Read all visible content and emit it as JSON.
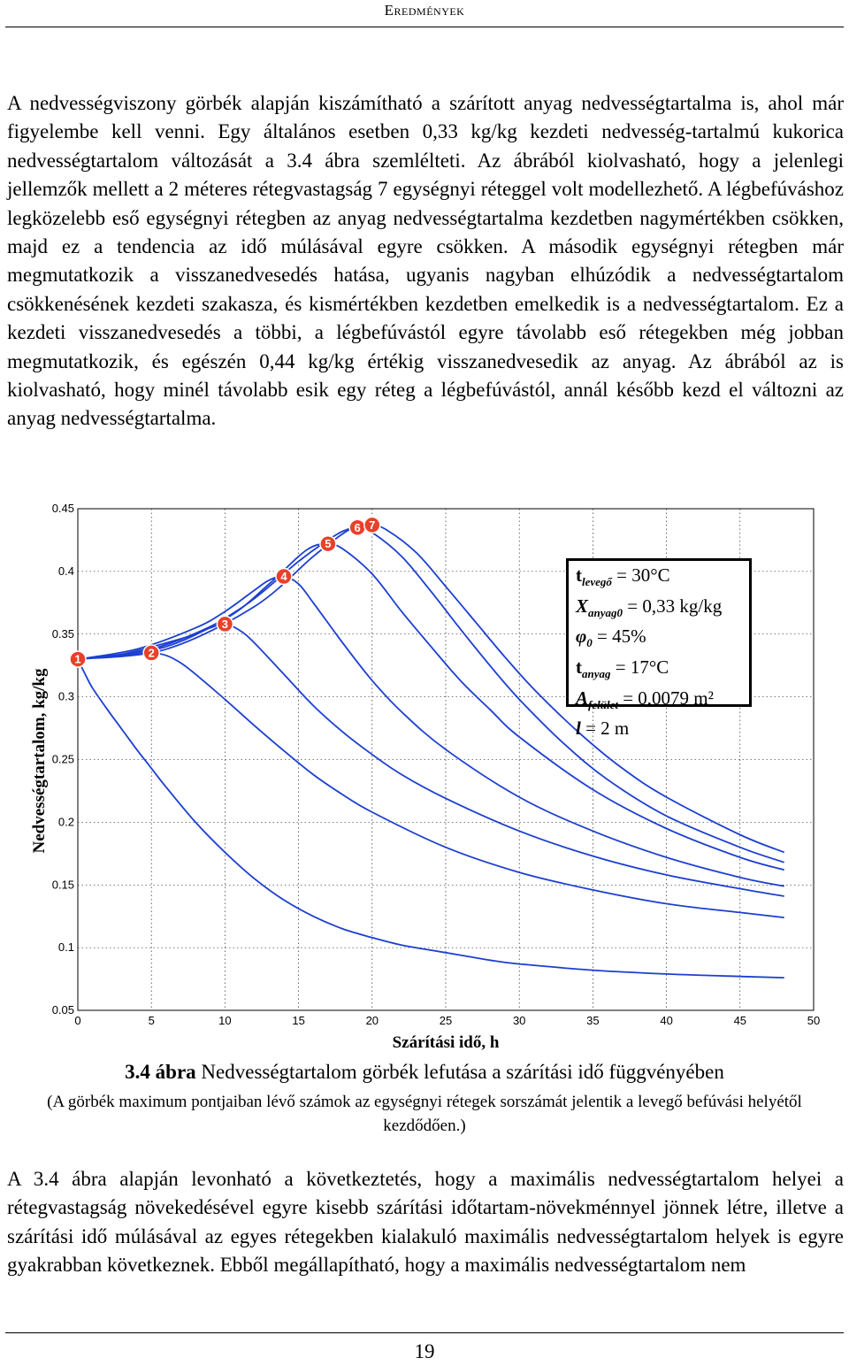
{
  "header": {
    "title": "Eredmények"
  },
  "paragraph1": "A nedvességviszony görbék alapján kiszámítható a szárított anyag nedvességtartalma is, ahol már figyelembe kell venni. Egy általános esetben 0,33 kg/kg kezdeti nedvesség-tartalmú kukorica nedvességtartalom változását a 3.4 ábra szemlélteti. Az ábrából kiolvasható, hogy a jelenlegi jellemzők mellett a 2 méteres rétegvastagság 7 egységnyi réteggel volt modellezhető. A légbefúváshoz legközelebb eső egységnyi rétegben az anyag nedvességtartalma kezdetben nagymértékben csökken, majd ez a tendencia az idő múlásával egyre csökken. A második egységnyi rétegben már megmutatkozik a visszanedvesedés hatása, ugyanis nagyban elhúzódik a nedvességtartalom csökkenésének kezdeti szakasza, és kismértékben kezdetben emelkedik is a nedvességtartalom. Ez a kezdeti visszanedvesedés a többi, a légbefúvástól egyre távolabb eső rétegekben még jobban megmutatkozik, és egészén 0,44 kg/kg értékig visszanedvesedik az anyag. Az ábrából az is kiolvasható, hogy minél távolabb esik egy réteg a légbefúvástól, annál később kezd el változni az anyag nedvességtartalma.",
  "figure": {
    "caption_number": "3.4 ábra",
    "caption_text": "Nedvességtartalom görbék lefutása a szárítási idő függvényében",
    "caption_note": "(A görbék maximum pontjaiban lévő számok az egységnyi rétegek sorszámát jelentik a levegő befúvási helyétől kezdődően.)",
    "params": [
      {
        "sym": "t",
        "sub": "levegő",
        "value": " = 30°C"
      },
      {
        "sym": "X",
        "sub": "anyag0",
        "value": " = 0,33 kg/kg"
      },
      {
        "sym": "φ",
        "sub": "0",
        "value": " = 45%"
      },
      {
        "sym": "t",
        "sub": "anyag",
        "value": " = 17°C"
      },
      {
        "sym": "A",
        "sub": "felület",
        "value": " = 0,0079 m²"
      },
      {
        "sym": "l",
        "sub": "",
        "value": " = 2 m"
      }
    ]
  },
  "chart_data": {
    "type": "line",
    "xlabel": "Szárítási idő, h",
    "ylabel": "Nedvességtartalom, kg/kg",
    "xlim": [
      0,
      50
    ],
    "ylim": [
      0.05,
      0.45
    ],
    "xticks": [
      "0",
      "5",
      "10",
      "15",
      "20",
      "25",
      "30",
      "35",
      "40",
      "45",
      "50"
    ],
    "yticks": [
      "0.05",
      "0.1",
      "0.15",
      "0.2",
      "0.25",
      "0.3",
      "0.35",
      "0.4",
      "0.45"
    ],
    "grid": true,
    "line_color": "#1c3fd0",
    "marker_color": "#e8402a",
    "series": [
      {
        "name": "1",
        "x": [
          0,
          0.5,
          1,
          2,
          3,
          4,
          5,
          6,
          8,
          10,
          12,
          14,
          16,
          18,
          20,
          22,
          24,
          26,
          28,
          30,
          35,
          40,
          45,
          48
        ],
        "y": [
          0.33,
          0.318,
          0.307,
          0.29,
          0.274,
          0.258,
          0.243,
          0.228,
          0.2,
          0.176,
          0.155,
          0.138,
          0.125,
          0.115,
          0.108,
          0.102,
          0.098,
          0.094,
          0.09,
          0.087,
          0.082,
          0.079,
          0.077,
          0.076
        ]
      },
      {
        "name": "2",
        "x": [
          0,
          2,
          4,
          5,
          6,
          7,
          8,
          10,
          12,
          14,
          16,
          18,
          20,
          25,
          30,
          35,
          40,
          45,
          48
        ],
        "y": [
          0.33,
          0.332,
          0.334,
          0.335,
          0.333,
          0.327,
          0.318,
          0.298,
          0.277,
          0.257,
          0.238,
          0.222,
          0.208,
          0.18,
          0.16,
          0.146,
          0.135,
          0.128,
          0.124
        ]
      },
      {
        "name": "3",
        "x": [
          0,
          3,
          6,
          8,
          9,
          10,
          11,
          12,
          14,
          16,
          18,
          20,
          22,
          25,
          30,
          35,
          40,
          45,
          48
        ],
        "y": [
          0.33,
          0.334,
          0.343,
          0.35,
          0.355,
          0.358,
          0.353,
          0.343,
          0.318,
          0.293,
          0.272,
          0.254,
          0.238,
          0.219,
          0.193,
          0.173,
          0.158,
          0.147,
          0.141
        ]
      },
      {
        "name": "4",
        "x": [
          0,
          4,
          8,
          10,
          12,
          13,
          14,
          15,
          16,
          18,
          20,
          22,
          25,
          30,
          35,
          40,
          45,
          48
        ],
        "y": [
          0.33,
          0.338,
          0.355,
          0.368,
          0.385,
          0.393,
          0.396,
          0.39,
          0.375,
          0.343,
          0.313,
          0.288,
          0.258,
          0.22,
          0.193,
          0.172,
          0.156,
          0.149
        ]
      },
      {
        "name": "5",
        "x": [
          0,
          5,
          10,
          13,
          15,
          16,
          17,
          18,
          20,
          22,
          24,
          26,
          28,
          30,
          35,
          40,
          45,
          48
        ],
        "y": [
          0.33,
          0.338,
          0.362,
          0.39,
          0.412,
          0.42,
          0.422,
          0.418,
          0.398,
          0.368,
          0.34,
          0.313,
          0.29,
          0.268,
          0.226,
          0.195,
          0.172,
          0.162
        ]
      },
      {
        "name": "6",
        "x": [
          0,
          6,
          11,
          15,
          17,
          18,
          19,
          20,
          22,
          24,
          26,
          28,
          30,
          33,
          36,
          40,
          45,
          48
        ],
        "y": [
          0.33,
          0.34,
          0.37,
          0.408,
          0.425,
          0.432,
          0.435,
          0.431,
          0.412,
          0.384,
          0.354,
          0.325,
          0.298,
          0.263,
          0.234,
          0.205,
          0.18,
          0.168
        ]
      },
      {
        "name": "7",
        "x": [
          0,
          6,
          12,
          16,
          18,
          19,
          20,
          21,
          23,
          25,
          27,
          29,
          31,
          34,
          37,
          40,
          45,
          48
        ],
        "y": [
          0.33,
          0.338,
          0.372,
          0.412,
          0.43,
          0.436,
          0.437,
          0.433,
          0.415,
          0.388,
          0.36,
          0.332,
          0.306,
          0.272,
          0.243,
          0.22,
          0.19,
          0.176
        ]
      }
    ]
  },
  "paragraph2": "A 3.4 ábra alapján levonható a következtetés, hogy a maximális nedvességtartalom helyei a rétegvastagság növekedésével egyre kisebb szárítási időtartam-növekménnyel jönnek létre, illetve a szárítási idő múlásával az egyes rétegekben kialakuló maximális nedvességtartalom helyek is egyre gyakrabban következnek. Ebből megállapítható, hogy a maximális nedvességtartalom nem",
  "page_number": "19"
}
